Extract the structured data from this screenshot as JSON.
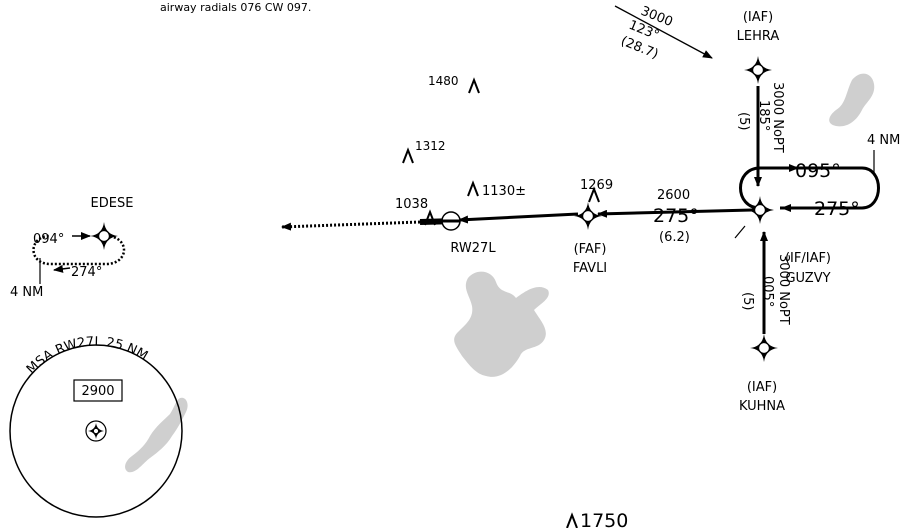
{
  "note": {
    "text": "airway radials 076 CW 097."
  },
  "fixes": {
    "lehra": {
      "role": "(IAF)",
      "name": "LEHRA"
    },
    "guzvy": {
      "role": "(IF/IAF)",
      "name": "GUZVY"
    },
    "kuhna": {
      "role": "(IAF)",
      "name": "KUHNA"
    },
    "favli": {
      "role": "(FAF)",
      "name": "FAVLI"
    },
    "edese": {
      "name": "EDESE"
    },
    "runway": {
      "name": "RW27L"
    }
  },
  "segments": {
    "northeast_arrival": {
      "altitude": "3000",
      "course": "123°",
      "distance": "(28.7)"
    },
    "lehra_guzvy": {
      "altitude": "3000 NoPT",
      "course": "185°",
      "distance": "(5)"
    },
    "kuhna_guzvy": {
      "altitude": "3000 NoPT",
      "course": "005°",
      "distance": "(5)"
    },
    "final": {
      "altitude": "2600",
      "course": "275°",
      "distance": "(6.2)"
    }
  },
  "holds": {
    "guzvy": {
      "outbound": "095°",
      "inbound": "275°",
      "leg": "4 NM"
    },
    "edese": {
      "outbound": "094°",
      "inbound": "274°",
      "leg": "4 NM"
    }
  },
  "obstacles": [
    {
      "id": "obs-1480",
      "label": "1480"
    },
    {
      "id": "obs-1312",
      "label": "1312"
    },
    {
      "id": "obs-1130",
      "label": "1130±"
    },
    {
      "id": "obs-1269",
      "label": "1269"
    },
    {
      "id": "obs-1038",
      "label": "1038"
    },
    {
      "id": "obs-1750",
      "label": "1750"
    }
  ],
  "msa": {
    "label": "MSA RW27L 25 NM",
    "altitude": "2900"
  },
  "icons": {
    "fix": "fix-star-icon",
    "obstacle": "obstacle-icon",
    "runway": "runway-icon",
    "msa_center": "msa-center-icon"
  },
  "colors": {
    "ink": "#000000",
    "water": "#cfcfcf",
    "background": "#ffffff"
  }
}
